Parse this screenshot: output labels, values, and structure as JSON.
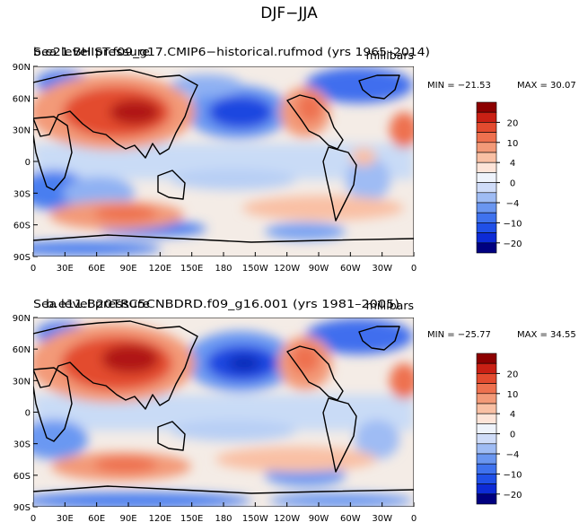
{
  "title": "DJF−JJA",
  "colors": {
    "levels": [
      {
        "label": "",
        "color": "#000080"
      },
      {
        "label": "−20",
        "color": "#0d2bd6"
      },
      {
        "label": "",
        "color": "#2050e8"
      },
      {
        "label": "−10",
        "color": "#3f72ee"
      },
      {
        "label": "",
        "color": "#6a96f0"
      },
      {
        "label": "−4",
        "color": "#9fbcf4"
      },
      {
        "label": "",
        "color": "#cfdcf8"
      },
      {
        "label": "0",
        "color": "#eef3fb"
      },
      {
        "label": "",
        "color": "#fde4d8"
      },
      {
        "label": "4",
        "color": "#f9c0a4"
      },
      {
        "label": "",
        "color": "#f39a78"
      },
      {
        "label": "10",
        "color": "#ee714f"
      },
      {
        "label": "",
        "color": "#e34b2f"
      },
      {
        "label": "20",
        "color": "#c92014"
      },
      {
        "label": "",
        "color": "#8c0000"
      }
    ]
  },
  "chart_data": [
    {
      "type": "contour-map",
      "title": "b.e21.BHIST.f09_g17.CMIP6−historical.rufmod (yrs 1965–2014)",
      "title_overprint": "Sea level pressure",
      "units": "millibars",
      "min_label": "MIN = −21.53",
      "max_label": "MAX =  30.07",
      "min": -21.53,
      "max": 30.07,
      "lat_ticks": [
        "90N",
        "60N",
        "30N",
        "0",
        "30S",
        "60S",
        "90S"
      ],
      "lon_ticks": [
        "0",
        "30E",
        "60E",
        "90E",
        "120E",
        "150E",
        "180",
        "150W",
        "120W",
        "90W",
        "60W",
        "30W",
        "0"
      ],
      "contour_levels": [
        -20,
        -16,
        -12,
        -10,
        -8,
        -6,
        -4,
        -2,
        0,
        2,
        4,
        6,
        8,
        10,
        12,
        16,
        20
      ]
    },
    {
      "type": "contour-map",
      "title": "b.e11.B20TRC5CNBDRD.f09_g16.001 (yrs 1981–2005)",
      "title_overprint": "Sea level pressure",
      "units": "millibars",
      "min_label": "MIN = −25.77",
      "max_label": "MAX =  34.55",
      "min": -25.77,
      "max": 34.55,
      "lat_ticks": [
        "90N",
        "60N",
        "30N",
        "0",
        "30S",
        "60S",
        "90S"
      ],
      "lon_ticks": [
        "0",
        "30E",
        "60E",
        "90E",
        "120E",
        "150E",
        "180",
        "150W",
        "120W",
        "90W",
        "60W",
        "30W",
        "0"
      ],
      "contour_levels": [
        -20,
        -16,
        -12,
        -10,
        -8,
        -6,
        -4,
        -2,
        0,
        2,
        4,
        6,
        8,
        10,
        12,
        16,
        20
      ]
    }
  ]
}
